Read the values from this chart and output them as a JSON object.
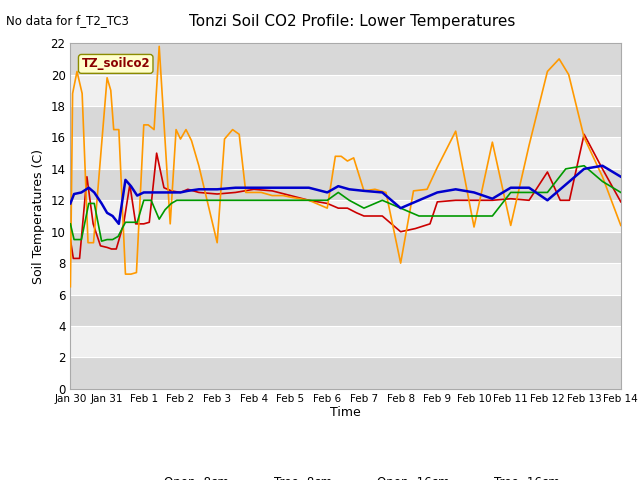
{
  "title": "Tonzi Soil CO2 Profile: Lower Temperatures",
  "subtitle": "No data for f_T2_TC3",
  "ylabel": "Soil Temperatures (C)",
  "xlabel": "Time",
  "annotation": "TZ_soilco2",
  "ylim": [
    0,
    22
  ],
  "xlim": [
    0,
    15
  ],
  "yticks": [
    0,
    2,
    4,
    6,
    8,
    10,
    12,
    14,
    16,
    18,
    20,
    22
  ],
  "xtick_labels": [
    "Jan 30",
    "Jan 31",
    "Feb 1",
    "Feb 2",
    "Feb 3",
    "Feb 4",
    "Feb 5",
    "Feb 6",
    "Feb 7",
    "Feb 8",
    "Feb 9",
    "Feb 10",
    "Feb 11",
    "Feb 12",
    "Feb 13",
    "Feb 14"
  ],
  "xtick_pos": [
    0,
    1,
    2,
    3,
    4,
    5,
    6,
    7,
    8,
    9,
    10,
    11,
    12,
    13,
    14,
    15
  ],
  "colors": {
    "open_8cm": "#cc0000",
    "tree_8cm": "#ff9900",
    "open_16cm": "#009900",
    "tree_16cm": "#0000cc"
  },
  "band_color_dark": "#d8d8d8",
  "band_color_light": "#f0f0f0",
  "fig_bg": "#ffffff",
  "x_r": [
    0.0,
    0.08,
    0.25,
    0.45,
    0.62,
    0.82,
    1.0,
    1.12,
    1.25,
    1.45,
    1.62,
    1.78,
    2.0,
    2.15,
    2.35,
    2.55,
    2.75,
    3.0,
    3.2,
    3.5,
    4.0,
    4.5,
    5.0,
    5.5,
    6.0,
    6.5,
    7.0,
    7.3,
    7.55,
    7.8,
    8.0,
    8.5,
    9.0,
    9.4,
    9.8,
    10.0,
    10.5,
    11.0,
    11.5,
    12.0,
    12.5,
    13.0,
    13.35,
    13.6,
    14.0,
    14.5,
    15.0
  ],
  "y_r": [
    9.5,
    8.3,
    8.3,
    13.5,
    10.5,
    9.1,
    9.0,
    8.9,
    8.9,
    10.5,
    13.0,
    10.5,
    10.5,
    10.6,
    15.0,
    12.8,
    12.6,
    12.5,
    12.7,
    12.5,
    12.4,
    12.5,
    12.7,
    12.6,
    12.3,
    12.0,
    11.8,
    11.5,
    11.5,
    11.2,
    11.0,
    11.0,
    10.0,
    10.2,
    10.5,
    11.9,
    12.0,
    12.0,
    12.0,
    12.1,
    12.0,
    13.8,
    12.0,
    12.0,
    16.2,
    14.0,
    11.9
  ],
  "x_o": [
    0.0,
    0.06,
    0.18,
    0.32,
    0.48,
    0.63,
    1.0,
    1.1,
    1.18,
    1.32,
    1.5,
    1.65,
    1.8,
    2.0,
    2.12,
    2.28,
    2.42,
    2.58,
    2.72,
    2.88,
    3.0,
    3.15,
    3.3,
    3.5,
    4.0,
    4.2,
    4.42,
    4.6,
    4.78,
    5.0,
    5.2,
    5.5,
    5.8,
    6.0,
    6.5,
    7.0,
    7.22,
    7.38,
    7.55,
    7.72,
    8.0,
    8.3,
    8.6,
    9.0,
    9.35,
    9.72,
    10.0,
    10.5,
    11.0,
    11.5,
    12.0,
    12.5,
    13.0,
    13.32,
    13.58,
    14.0,
    14.5,
    15.0
  ],
  "y_o": [
    6.5,
    18.8,
    20.2,
    18.8,
    9.3,
    9.3,
    19.8,
    19.0,
    16.5,
    16.5,
    7.3,
    7.3,
    7.4,
    16.8,
    16.8,
    16.5,
    21.8,
    15.8,
    10.5,
    16.5,
    15.9,
    16.5,
    15.8,
    14.2,
    9.3,
    15.9,
    16.5,
    16.2,
    12.5,
    12.5,
    12.5,
    12.3,
    12.3,
    12.2,
    12.0,
    11.5,
    14.8,
    14.8,
    14.5,
    14.7,
    12.6,
    12.7,
    12.5,
    8.0,
    12.6,
    12.7,
    14.1,
    16.4,
    10.3,
    15.7,
    10.4,
    15.5,
    20.2,
    21.0,
    20.0,
    16.0,
    13.5,
    10.4
  ],
  "x_g": [
    0.0,
    0.1,
    0.3,
    0.5,
    0.65,
    0.85,
    1.0,
    1.15,
    1.3,
    1.5,
    1.65,
    1.82,
    2.0,
    2.2,
    2.42,
    2.58,
    2.75,
    2.9,
    3.0,
    3.2,
    3.5,
    4.0,
    4.5,
    5.0,
    5.5,
    6.0,
    6.5,
    7.0,
    7.3,
    7.6,
    8.0,
    8.5,
    9.0,
    9.5,
    10.0,
    10.5,
    11.0,
    11.5,
    12.0,
    12.5,
    13.0,
    13.5,
    14.0,
    14.5,
    15.0
  ],
  "y_g": [
    10.5,
    9.5,
    9.5,
    11.8,
    11.8,
    9.4,
    9.5,
    9.5,
    9.7,
    10.6,
    10.6,
    10.6,
    12.0,
    12.0,
    10.8,
    11.4,
    11.8,
    12.0,
    12.0,
    12.0,
    12.0,
    12.0,
    12.0,
    12.0,
    12.0,
    12.0,
    12.0,
    12.0,
    12.5,
    12.0,
    11.5,
    12.0,
    11.5,
    11.0,
    11.0,
    11.0,
    11.0,
    11.0,
    12.5,
    12.5,
    12.5,
    14.0,
    14.2,
    13.2,
    12.5
  ],
  "x_b": [
    0.0,
    0.1,
    0.3,
    0.5,
    0.65,
    0.85,
    1.0,
    1.15,
    1.32,
    1.5,
    1.65,
    1.82,
    2.0,
    2.2,
    2.42,
    2.58,
    2.75,
    2.9,
    3.0,
    3.2,
    3.5,
    4.0,
    4.5,
    5.0,
    5.5,
    6.0,
    6.5,
    7.0,
    7.3,
    7.6,
    8.0,
    8.5,
    9.0,
    9.5,
    10.0,
    10.5,
    11.0,
    11.5,
    12.0,
    12.5,
    13.0,
    13.5,
    14.0,
    14.5,
    15.0
  ],
  "y_b": [
    11.8,
    12.4,
    12.5,
    12.8,
    12.5,
    11.8,
    11.2,
    11.0,
    10.5,
    13.3,
    12.9,
    12.3,
    12.5,
    12.5,
    12.5,
    12.5,
    12.5,
    12.5,
    12.5,
    12.6,
    12.7,
    12.7,
    12.8,
    12.8,
    12.8,
    12.8,
    12.8,
    12.5,
    12.9,
    12.7,
    12.6,
    12.5,
    11.5,
    12.0,
    12.5,
    12.7,
    12.5,
    12.1,
    12.8,
    12.8,
    12.0,
    13.0,
    14.0,
    14.2,
    13.5
  ]
}
